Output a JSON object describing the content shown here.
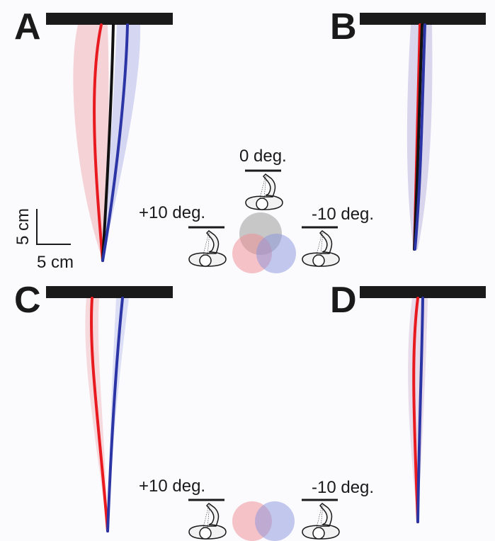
{
  "panels": [
    {
      "label": "A"
    },
    {
      "label": "B"
    },
    {
      "label": "C"
    },
    {
      "label": "D"
    }
  ],
  "scale_bar": {
    "vertical": "5 cm",
    "horizontal": "5 cm"
  },
  "conditions_top": {
    "center": "0 deg.",
    "left": "+10 deg.",
    "right": "-10 deg."
  },
  "conditions_bottom": {
    "left": "+10 deg.",
    "right": "-10 deg."
  }
}
